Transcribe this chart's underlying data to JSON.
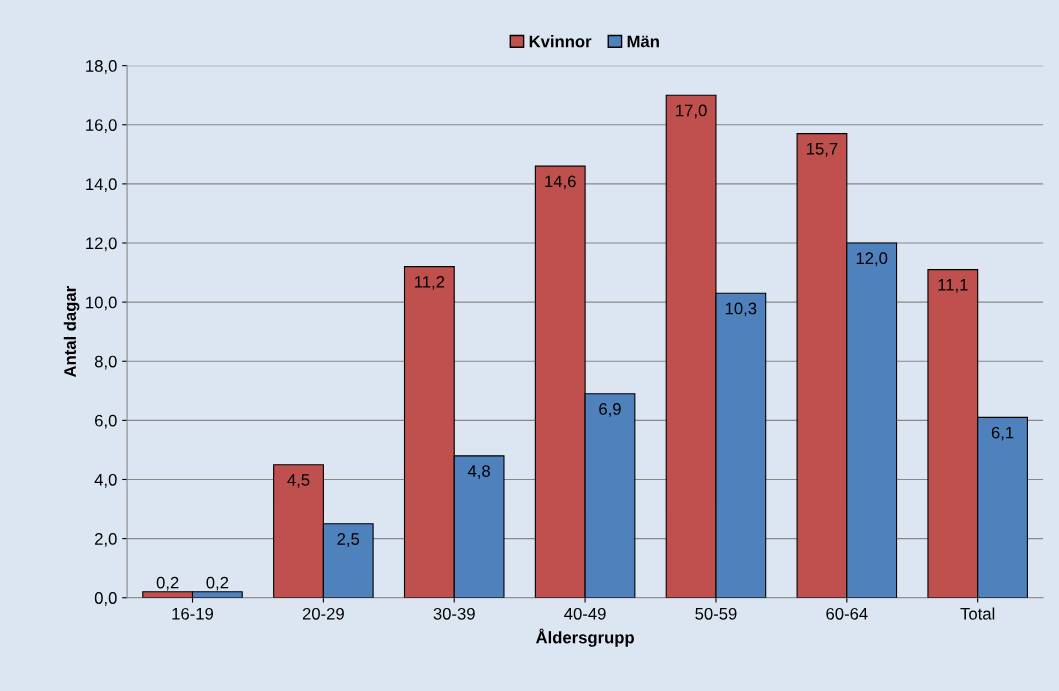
{
  "chart_data": {
    "type": "bar",
    "xlabel": "Åldersgrupp",
    "ylabel": "Antal dagar",
    "categories": [
      "16-19",
      "20-29",
      "30-39",
      "40-49",
      "50-59",
      "60-64",
      "Total"
    ],
    "series": [
      {
        "name": "Kvinnor",
        "color": "#c0504d",
        "values": [
          0.2,
          4.5,
          11.2,
          14.6,
          17.0,
          15.7,
          11.1
        ],
        "value_labels": [
          "0,2",
          "4,5",
          "11,2",
          "14,6",
          "17,0",
          "15,7",
          "11,1"
        ]
      },
      {
        "name": "Män",
        "color": "#4f81bd",
        "values": [
          0.2,
          2.5,
          4.8,
          6.9,
          10.3,
          12.0,
          6.1
        ],
        "value_labels": [
          "0,2",
          "2,5",
          "4,8",
          "6,9",
          "10,3",
          "12,0",
          "6,1"
        ]
      }
    ],
    "ylim": [
      0,
      18
    ],
    "yticks": [
      {
        "value": 0,
        "label": "0,0"
      },
      {
        "value": 2,
        "label": "2,0"
      },
      {
        "value": 4,
        "label": "4,0"
      },
      {
        "value": 6,
        "label": "6,0"
      },
      {
        "value": 8,
        "label": "8,0"
      },
      {
        "value": 10,
        "label": "10,0"
      },
      {
        "value": 12,
        "label": "12,0"
      },
      {
        "value": 14,
        "label": "14,0"
      },
      {
        "value": 16,
        "label": "16,0"
      },
      {
        "value": 18,
        "label": "18,0"
      }
    ],
    "grid": "y",
    "legend": "top"
  }
}
